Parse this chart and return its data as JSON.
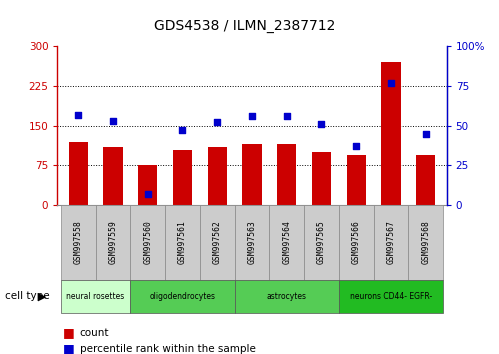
{
  "title": "GDS4538 / ILMN_2387712",
  "samples": [
    "GSM997558",
    "GSM997559",
    "GSM997560",
    "GSM997561",
    "GSM997562",
    "GSM997563",
    "GSM997564",
    "GSM997565",
    "GSM997566",
    "GSM997567",
    "GSM997568"
  ],
  "counts": [
    120,
    110,
    75,
    105,
    110,
    115,
    115,
    100,
    95,
    270,
    95
  ],
  "percentiles": [
    57,
    53,
    7,
    47,
    52,
    56,
    56,
    51,
    37,
    77,
    45
  ],
  "left_ylim": [
    0,
    300
  ],
  "right_ylim": [
    0,
    100
  ],
  "left_yticks": [
    0,
    75,
    150,
    225,
    300
  ],
  "right_yticks": [
    0,
    25,
    50,
    75,
    100
  ],
  "left_yticklabels": [
    "0",
    "75",
    "150",
    "225",
    "300"
  ],
  "right_yticklabels": [
    "0",
    "25",
    "50",
    "75",
    "100%"
  ],
  "bar_color": "#cc0000",
  "dot_color": "#0000cc",
  "legend_count_label": "count",
  "legend_pct_label": "percentile rank within the sample",
  "cell_types_def": [
    {
      "label": "neural rosettes",
      "start": 0,
      "end": 1,
      "color": "#ccffcc"
    },
    {
      "label": "oligodendrocytes",
      "start": 2,
      "end": 4,
      "color": "#55cc55"
    },
    {
      "label": "astrocytes",
      "start": 5,
      "end": 7,
      "color": "#55cc55"
    },
    {
      "label": "neurons CD44- EGFR-",
      "start": 8,
      "end": 10,
      "color": "#22bb22"
    }
  ]
}
